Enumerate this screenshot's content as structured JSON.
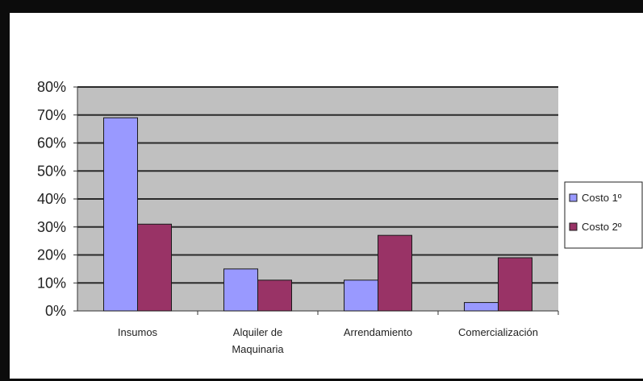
{
  "chart_data": {
    "type": "bar",
    "categories": [
      [
        "Insumos"
      ],
      [
        "Alquiler de",
        "Maquinaria"
      ],
      [
        "Arrendamiento"
      ],
      [
        "Comercialización"
      ]
    ],
    "series": [
      {
        "name": "Costo 1º",
        "values": [
          69,
          15,
          11,
          3
        ],
        "color": "#9999ff"
      },
      {
        "name": "Costo 2º",
        "values": [
          31,
          11,
          27,
          19
        ],
        "color": "#993366"
      }
    ],
    "yticks": [
      "0%",
      "10%",
      "20%",
      "30%",
      "40%",
      "50%",
      "60%",
      "70%",
      "80%"
    ],
    "ylim": [
      0,
      80
    ],
    "grid": true,
    "plot_background": "#c0c0c0",
    "legend_position": "right"
  }
}
